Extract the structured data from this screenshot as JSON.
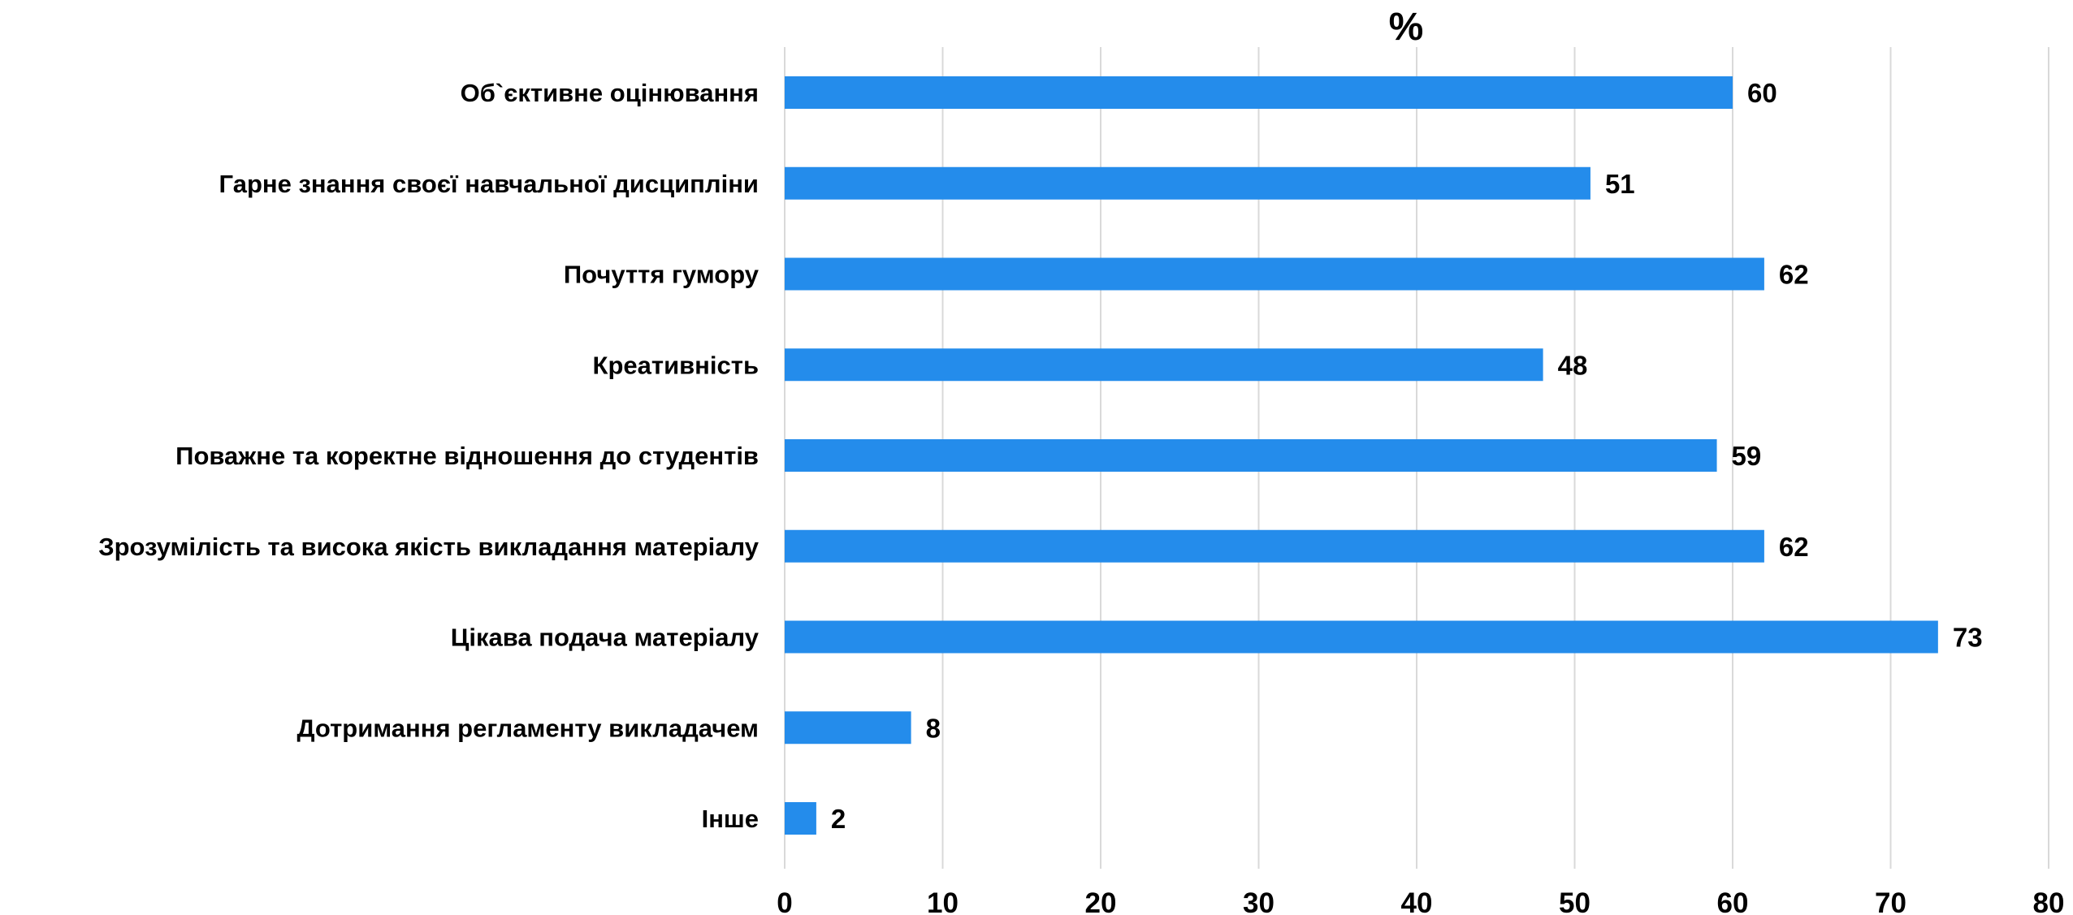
{
  "chart_data": {
    "type": "bar",
    "orientation": "horizontal",
    "title": "%",
    "categories": [
      "Об`єктивне оцінювання",
      "Гарне знання своєї навчальної дисципліни",
      "Почуття гумору",
      "Креативність",
      "Поважне та коректне відношення до студентів",
      "Зрозумілість та висока якість викладання матеріалу",
      "Цікава подача матеріалу",
      "Дотримання регламенту викладачем",
      "Інше"
    ],
    "values": [
      60,
      51,
      62,
      48,
      59,
      62,
      73,
      8,
      2
    ],
    "value_labels": [
      "60",
      "51",
      "62",
      "48",
      "59",
      "62",
      "73",
      "8",
      "2"
    ],
    "xlim": [
      0,
      80
    ],
    "x_ticks": [
      0,
      10,
      20,
      30,
      40,
      50,
      60,
      70,
      80
    ],
    "x_tick_labels": [
      "0",
      "10",
      "20",
      "30",
      "40",
      "50",
      "60",
      "70",
      "80"
    ],
    "grid": true,
    "legend": "none",
    "colors": {
      "bar": "#248CEB",
      "grid": "#D9D9D9",
      "text": "#000000"
    }
  }
}
